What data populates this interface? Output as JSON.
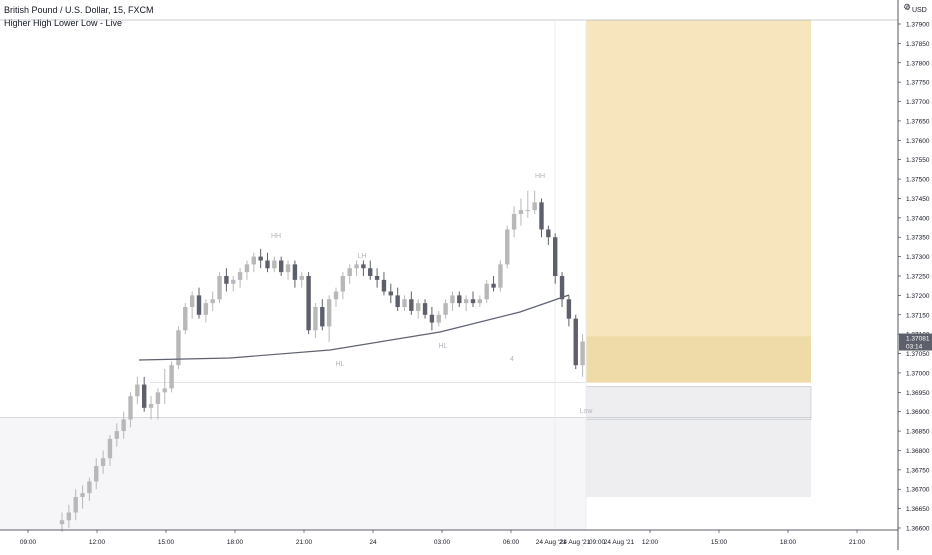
{
  "legend": {
    "title": "British Pound / U.S. Dollar, 15, FXCM",
    "indicator": "Higher High Lower Low - Live"
  },
  "price_scale": {
    "currency": "USD",
    "ticks": [
      "1.37900",
      "1.37850",
      "1.37800",
      "1.37750",
      "1.37700",
      "1.37650",
      "1.37600",
      "1.37550",
      "1.37500",
      "1.37450",
      "1.37400",
      "1.37350",
      "1.37300",
      "1.37250",
      "1.37200",
      "1.37150",
      "1.37100",
      "1.37050",
      "1.37000",
      "1.36950",
      "1.36900",
      "1.36850",
      "1.36800",
      "1.36750",
      "1.36700",
      "1.36650",
      "1.36600"
    ],
    "last_price": "1.37081",
    "countdown": "03:14"
  },
  "time_scale": {
    "ticks": [
      "09:00",
      "12:00",
      "15:00",
      "18:00",
      "21:00",
      "24",
      "03:00",
      "06:00",
      "09:00",
      "12:00",
      "15:00",
      "18:00",
      "21:00"
    ],
    "crosshair_labels": [
      "24 Aug '21",
      "24 Aug '21",
      "09:00",
      "24 Aug '21"
    ]
  },
  "pivot_labels": [
    "HH",
    "LH",
    "HH",
    "HL",
    "HL",
    "Low"
  ],
  "colors": {
    "bull_candle": "#b8b8b8",
    "bear_candle": "#5d606b",
    "target_zone": "#f7e6bd",
    "entry_zone": "#efdba7",
    "stop_zone": "#eeeef0",
    "lower_zone": "#f6f6f8",
    "label_text": "#b2b5be",
    "curve": "#5f6270",
    "price_tag": "#5d606b"
  },
  "chart_data": {
    "type": "candlestick",
    "symbol": "British Pound / U.S. Dollar",
    "timeframe": "15",
    "source": "FXCM",
    "ylim": [
      1.3657,
      1.3796
    ],
    "candles": [
      {
        "o": 1.3661,
        "h": 1.3664,
        "l": 1.3659,
        "c": 1.3662
      },
      {
        "o": 1.3662,
        "h": 1.3666,
        "l": 1.366,
        "c": 1.3664
      },
      {
        "o": 1.3664,
        "h": 1.367,
        "l": 1.3662,
        "c": 1.3668
      },
      {
        "o": 1.3668,
        "h": 1.3671,
        "l": 1.3665,
        "c": 1.3669
      },
      {
        "o": 1.3669,
        "h": 1.3673,
        "l": 1.3667,
        "c": 1.3672
      },
      {
        "o": 1.3672,
        "h": 1.3678,
        "l": 1.367,
        "c": 1.3676
      },
      {
        "o": 1.3676,
        "h": 1.368,
        "l": 1.3674,
        "c": 1.3678
      },
      {
        "o": 1.3678,
        "h": 1.3684,
        "l": 1.3676,
        "c": 1.3683
      },
      {
        "o": 1.3683,
        "h": 1.3687,
        "l": 1.3681,
        "c": 1.3685
      },
      {
        "o": 1.3685,
        "h": 1.369,
        "l": 1.3683,
        "c": 1.3688
      },
      {
        "o": 1.3688,
        "h": 1.3695,
        "l": 1.3686,
        "c": 1.3694
      },
      {
        "o": 1.3694,
        "h": 1.3699,
        "l": 1.3692,
        "c": 1.3697
      },
      {
        "o": 1.3697,
        "h": 1.3699,
        "l": 1.369,
        "c": 1.3691
      },
      {
        "o": 1.3691,
        "h": 1.3694,
        "l": 1.3688,
        "c": 1.3692
      },
      {
        "o": 1.3692,
        "h": 1.3696,
        "l": 1.3688,
        "c": 1.3695
      },
      {
        "o": 1.3695,
        "h": 1.3701,
        "l": 1.3692,
        "c": 1.3696
      },
      {
        "o": 1.3696,
        "h": 1.3703,
        "l": 1.3695,
        "c": 1.3702
      },
      {
        "o": 1.3702,
        "h": 1.3712,
        "l": 1.3701,
        "c": 1.3711
      },
      {
        "o": 1.3711,
        "h": 1.3718,
        "l": 1.371,
        "c": 1.3717
      },
      {
        "o": 1.3717,
        "h": 1.3721,
        "l": 1.3714,
        "c": 1.372
      },
      {
        "o": 1.372,
        "h": 1.3722,
        "l": 1.3714,
        "c": 1.3715
      },
      {
        "o": 1.3715,
        "h": 1.3719,
        "l": 1.3713,
        "c": 1.3718
      },
      {
        "o": 1.3718,
        "h": 1.3721,
        "l": 1.3716,
        "c": 1.3719
      },
      {
        "o": 1.3719,
        "h": 1.3726,
        "l": 1.3718,
        "c": 1.3725
      },
      {
        "o": 1.3725,
        "h": 1.3727,
        "l": 1.3721,
        "c": 1.3723
      },
      {
        "o": 1.3723,
        "h": 1.3725,
        "l": 1.3721,
        "c": 1.3724
      },
      {
        "o": 1.3724,
        "h": 1.3727,
        "l": 1.3722,
        "c": 1.3726
      },
      {
        "o": 1.3726,
        "h": 1.3729,
        "l": 1.3724,
        "c": 1.3728
      },
      {
        "o": 1.3728,
        "h": 1.3731,
        "l": 1.3726,
        "c": 1.373
      },
      {
        "o": 1.373,
        "h": 1.3732,
        "l": 1.3727,
        "c": 1.3729
      },
      {
        "o": 1.3729,
        "h": 1.3731,
        "l": 1.3726,
        "c": 1.3727
      },
      {
        "o": 1.3727,
        "h": 1.373,
        "l": 1.3726,
        "c": 1.3729
      },
      {
        "o": 1.3729,
        "h": 1.373,
        "l": 1.3725,
        "c": 1.3726
      },
      {
        "o": 1.3726,
        "h": 1.3729,
        "l": 1.3724,
        "c": 1.3728
      },
      {
        "o": 1.3728,
        "h": 1.3729,
        "l": 1.3722,
        "c": 1.3724
      },
      {
        "o": 1.3724,
        "h": 1.3726,
        "l": 1.3722,
        "c": 1.3725
      },
      {
        "o": 1.3725,
        "h": 1.3726,
        "l": 1.371,
        "c": 1.3711
      },
      {
        "o": 1.3711,
        "h": 1.3718,
        "l": 1.3709,
        "c": 1.3717
      },
      {
        "o": 1.3717,
        "h": 1.3719,
        "l": 1.3711,
        "c": 1.3712
      },
      {
        "o": 1.3712,
        "h": 1.372,
        "l": 1.3708,
        "c": 1.3719
      },
      {
        "o": 1.3719,
        "h": 1.3722,
        "l": 1.3717,
        "c": 1.3721
      },
      {
        "o": 1.3721,
        "h": 1.3726,
        "l": 1.3719,
        "c": 1.3725
      },
      {
        "o": 1.3725,
        "h": 1.3728,
        "l": 1.3723,
        "c": 1.3727
      },
      {
        "o": 1.3727,
        "h": 1.3729,
        "l": 1.3725,
        "c": 1.3728
      },
      {
        "o": 1.3728,
        "h": 1.3729,
        "l": 1.3725,
        "c": 1.3727
      },
      {
        "o": 1.3727,
        "h": 1.3729,
        "l": 1.3724,
        "c": 1.3725
      },
      {
        "o": 1.3725,
        "h": 1.3727,
        "l": 1.3722,
        "c": 1.3724
      },
      {
        "o": 1.3724,
        "h": 1.3726,
        "l": 1.372,
        "c": 1.3721
      },
      {
        "o": 1.3721,
        "h": 1.3723,
        "l": 1.3718,
        "c": 1.372
      },
      {
        "o": 1.372,
        "h": 1.3722,
        "l": 1.3716,
        "c": 1.3717
      },
      {
        "o": 1.3717,
        "h": 1.372,
        "l": 1.3716,
        "c": 1.3719
      },
      {
        "o": 1.3719,
        "h": 1.3721,
        "l": 1.3715,
        "c": 1.3716
      },
      {
        "o": 1.3716,
        "h": 1.3719,
        "l": 1.3714,
        "c": 1.3718
      },
      {
        "o": 1.3718,
        "h": 1.3719,
        "l": 1.3714,
        "c": 1.3715
      },
      {
        "o": 1.3715,
        "h": 1.3717,
        "l": 1.3711,
        "c": 1.3713
      },
      {
        "o": 1.3713,
        "h": 1.3716,
        "l": 1.3712,
        "c": 1.3715
      },
      {
        "o": 1.3715,
        "h": 1.3719,
        "l": 1.3714,
        "c": 1.3718
      },
      {
        "o": 1.3718,
        "h": 1.3721,
        "l": 1.3716,
        "c": 1.372
      },
      {
        "o": 1.372,
        "h": 1.3721,
        "l": 1.3717,
        "c": 1.3718
      },
      {
        "o": 1.3718,
        "h": 1.372,
        "l": 1.3716,
        "c": 1.3719
      },
      {
        "o": 1.3719,
        "h": 1.3721,
        "l": 1.3717,
        "c": 1.3718
      },
      {
        "o": 1.3718,
        "h": 1.372,
        "l": 1.3717,
        "c": 1.3719
      },
      {
        "o": 1.3719,
        "h": 1.3724,
        "l": 1.3718,
        "c": 1.3723
      },
      {
        "o": 1.3723,
        "h": 1.3725,
        "l": 1.3721,
        "c": 1.3722
      },
      {
        "o": 1.3722,
        "h": 1.3729,
        "l": 1.3721,
        "c": 1.3728
      },
      {
        "o": 1.3728,
        "h": 1.3738,
        "l": 1.3727,
        "c": 1.3737
      },
      {
        "o": 1.3737,
        "h": 1.3743,
        "l": 1.3735,
        "c": 1.3741
      },
      {
        "o": 1.3741,
        "h": 1.3745,
        "l": 1.3738,
        "c": 1.3742
      },
      {
        "o": 1.3742,
        "h": 1.3747,
        "l": 1.374,
        "c": 1.3742
      },
      {
        "o": 1.3742,
        "h": 1.3747,
        "l": 1.3741,
        "c": 1.3744
      },
      {
        "o": 1.3744,
        "h": 1.3745,
        "l": 1.3735,
        "c": 1.3737
      },
      {
        "o": 1.3737,
        "h": 1.3738,
        "l": 1.3733,
        "c": 1.3735
      },
      {
        "o": 1.3735,
        "h": 1.3736,
        "l": 1.3723,
        "c": 1.3725
      },
      {
        "o": 1.3725,
        "h": 1.3726,
        "l": 1.3717,
        "c": 1.3719
      },
      {
        "o": 1.3719,
        "h": 1.372,
        "l": 1.3712,
        "c": 1.3714
      },
      {
        "o": 1.3714,
        "h": 1.3715,
        "l": 1.3701,
        "c": 1.3702
      },
      {
        "o": 1.3702,
        "h": 1.371,
        "l": 1.3699,
        "c": 1.37081
      }
    ],
    "trend_curve": [
      [
        1.3704
      ],
      [
        1.37036
      ],
      [
        1.3705
      ],
      [
        1.371
      ],
      [
        1.372
      ]
    ],
    "pivots": [
      {
        "label": "HH",
        "price": 1.37325
      },
      {
        "label": "LH",
        "price": 1.37285
      },
      {
        "label": "HH",
        "price": 1.3747
      },
      {
        "label": "HL",
        "price": 1.37025
      },
      {
        "label": "HL",
        "price": 1.3708
      },
      {
        "label": "Low",
        "price": 1.36935
      }
    ],
    "position": {
      "target_price": 1.3791,
      "entry_price": 1.37095,
      "entry_low": 1.36975,
      "stop_price": 1.36965,
      "stop_low": 1.3688,
      "lower_zone_low": 1.3668
    },
    "horizontal_lines": [
      1.36885,
      1.36975
    ]
  }
}
